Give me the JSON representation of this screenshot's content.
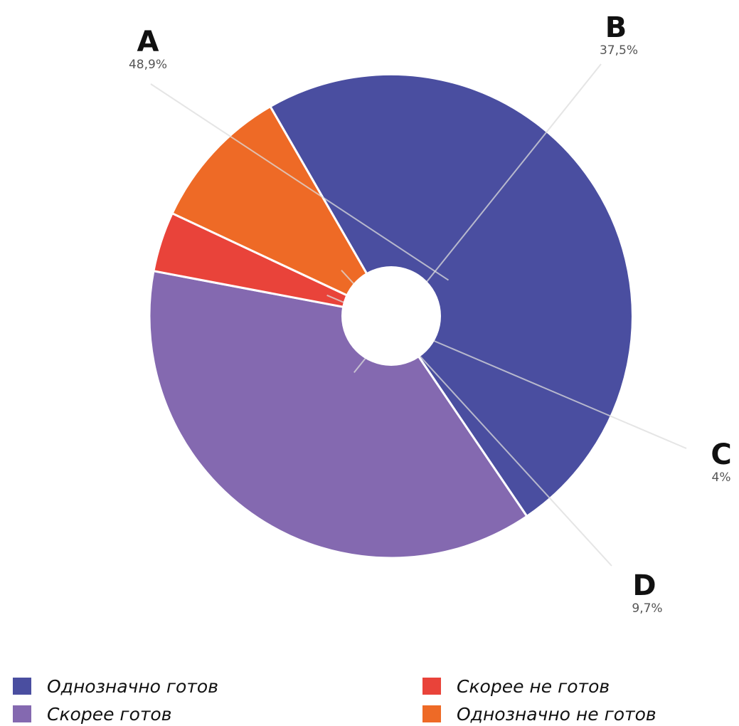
{
  "chart_data": {
    "type": "pie",
    "donut": true,
    "slices": [
      {
        "label": "A",
        "value_text": "48,9%",
        "value": 48.9,
        "color": "#4a4ea0",
        "legend": "Однозначно готов"
      },
      {
        "label": "B",
        "value_text": "37,5%",
        "value": 37.5,
        "color": "#8469b0",
        "legend": "Скорее готов"
      },
      {
        "label": "C",
        "value_text": "4%",
        "value": 4.0,
        "color": "#e9433a",
        "legend": "Скорее не готов"
      },
      {
        "label": "D",
        "value_text": "9,7%",
        "value": 9.7,
        "color": "#ee6a26",
        "legend": "Однозначно не готов"
      }
    ],
    "legend_position": "bottom"
  }
}
